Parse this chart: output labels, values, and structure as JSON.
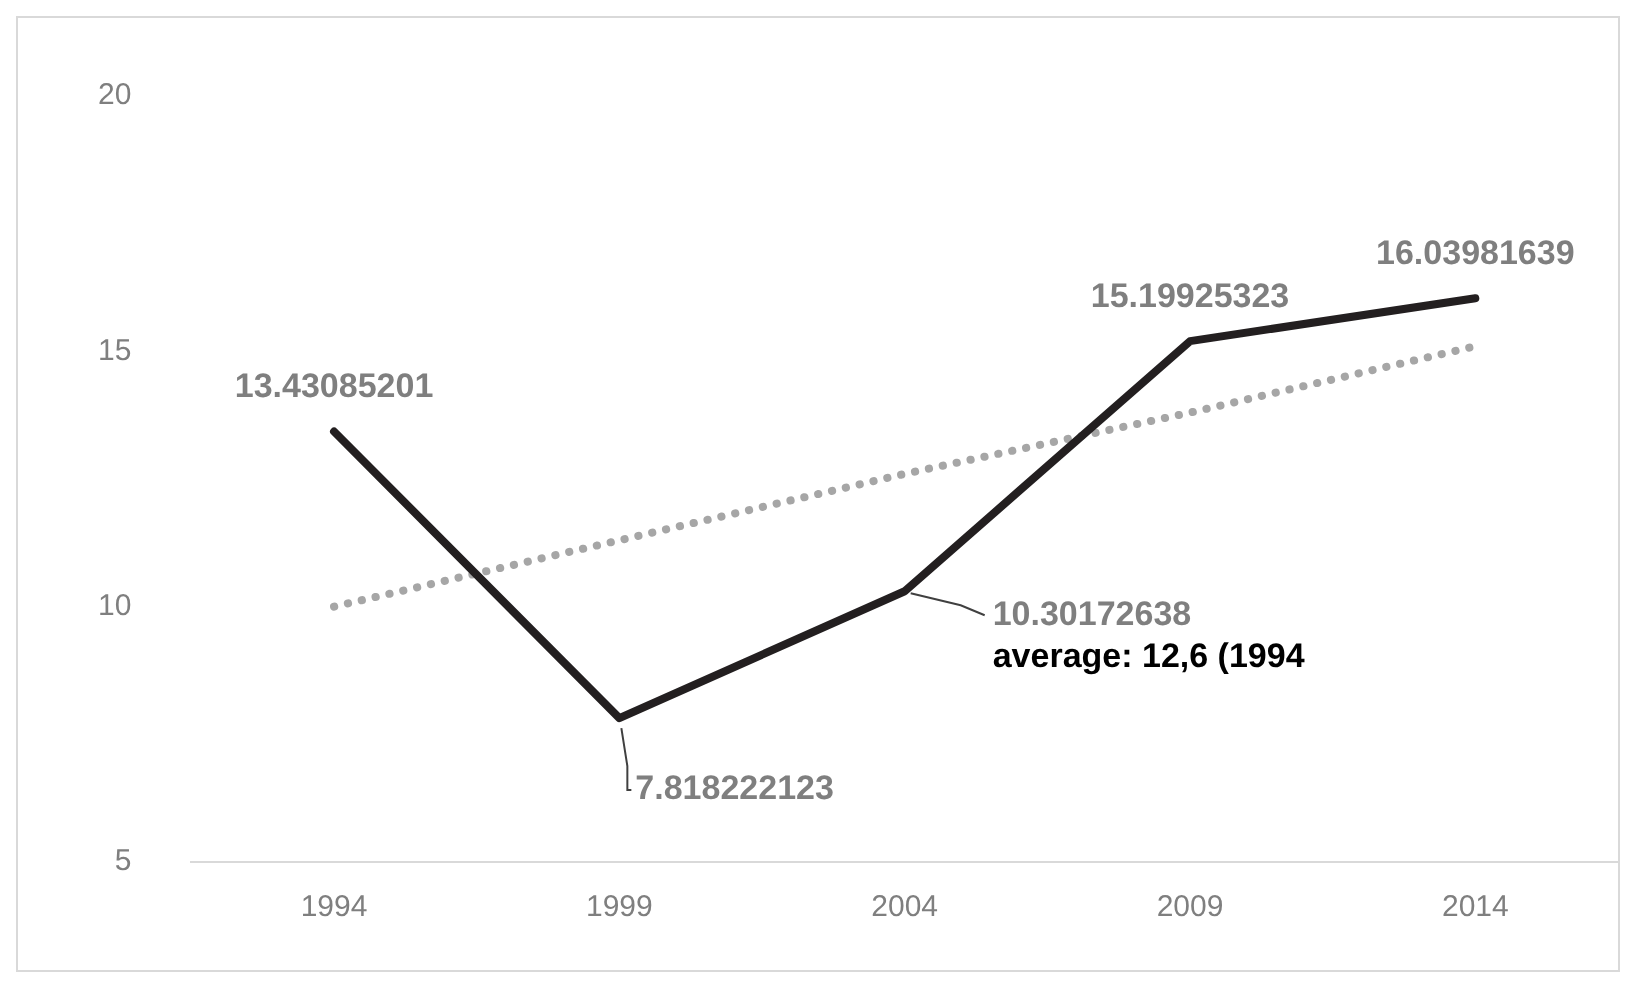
{
  "chart_data": {
    "type": "line",
    "categories": [
      "1994",
      "1999",
      "2004",
      "2009",
      "2014"
    ],
    "series": [
      {
        "color": "#231f20",
        "values": [
          13.43085201,
          7.818222123,
          10.30172638,
          15.19925323,
          16.03981639
        ],
        "value_labels": [
          "13.43085201",
          "7.818222123",
          "10.30172638",
          "15.19925323",
          "16.03981639"
        ],
        "line_style": "solid"
      },
      {
        "color": "#a6a6a6",
        "values": [
          10.0,
          11.3,
          12.6,
          13.8,
          15.1
        ],
        "line_style": "dotted"
      }
    ],
    "annotations": [
      {
        "text": "average: 12,6 (1994",
        "x": "2004",
        "y": 10.30172638
      }
    ],
    "ylim": [
      5,
      20
    ],
    "yticks": [
      5,
      10,
      15,
      20
    ],
    "grid": false,
    "legend": false,
    "marker": "none"
  }
}
